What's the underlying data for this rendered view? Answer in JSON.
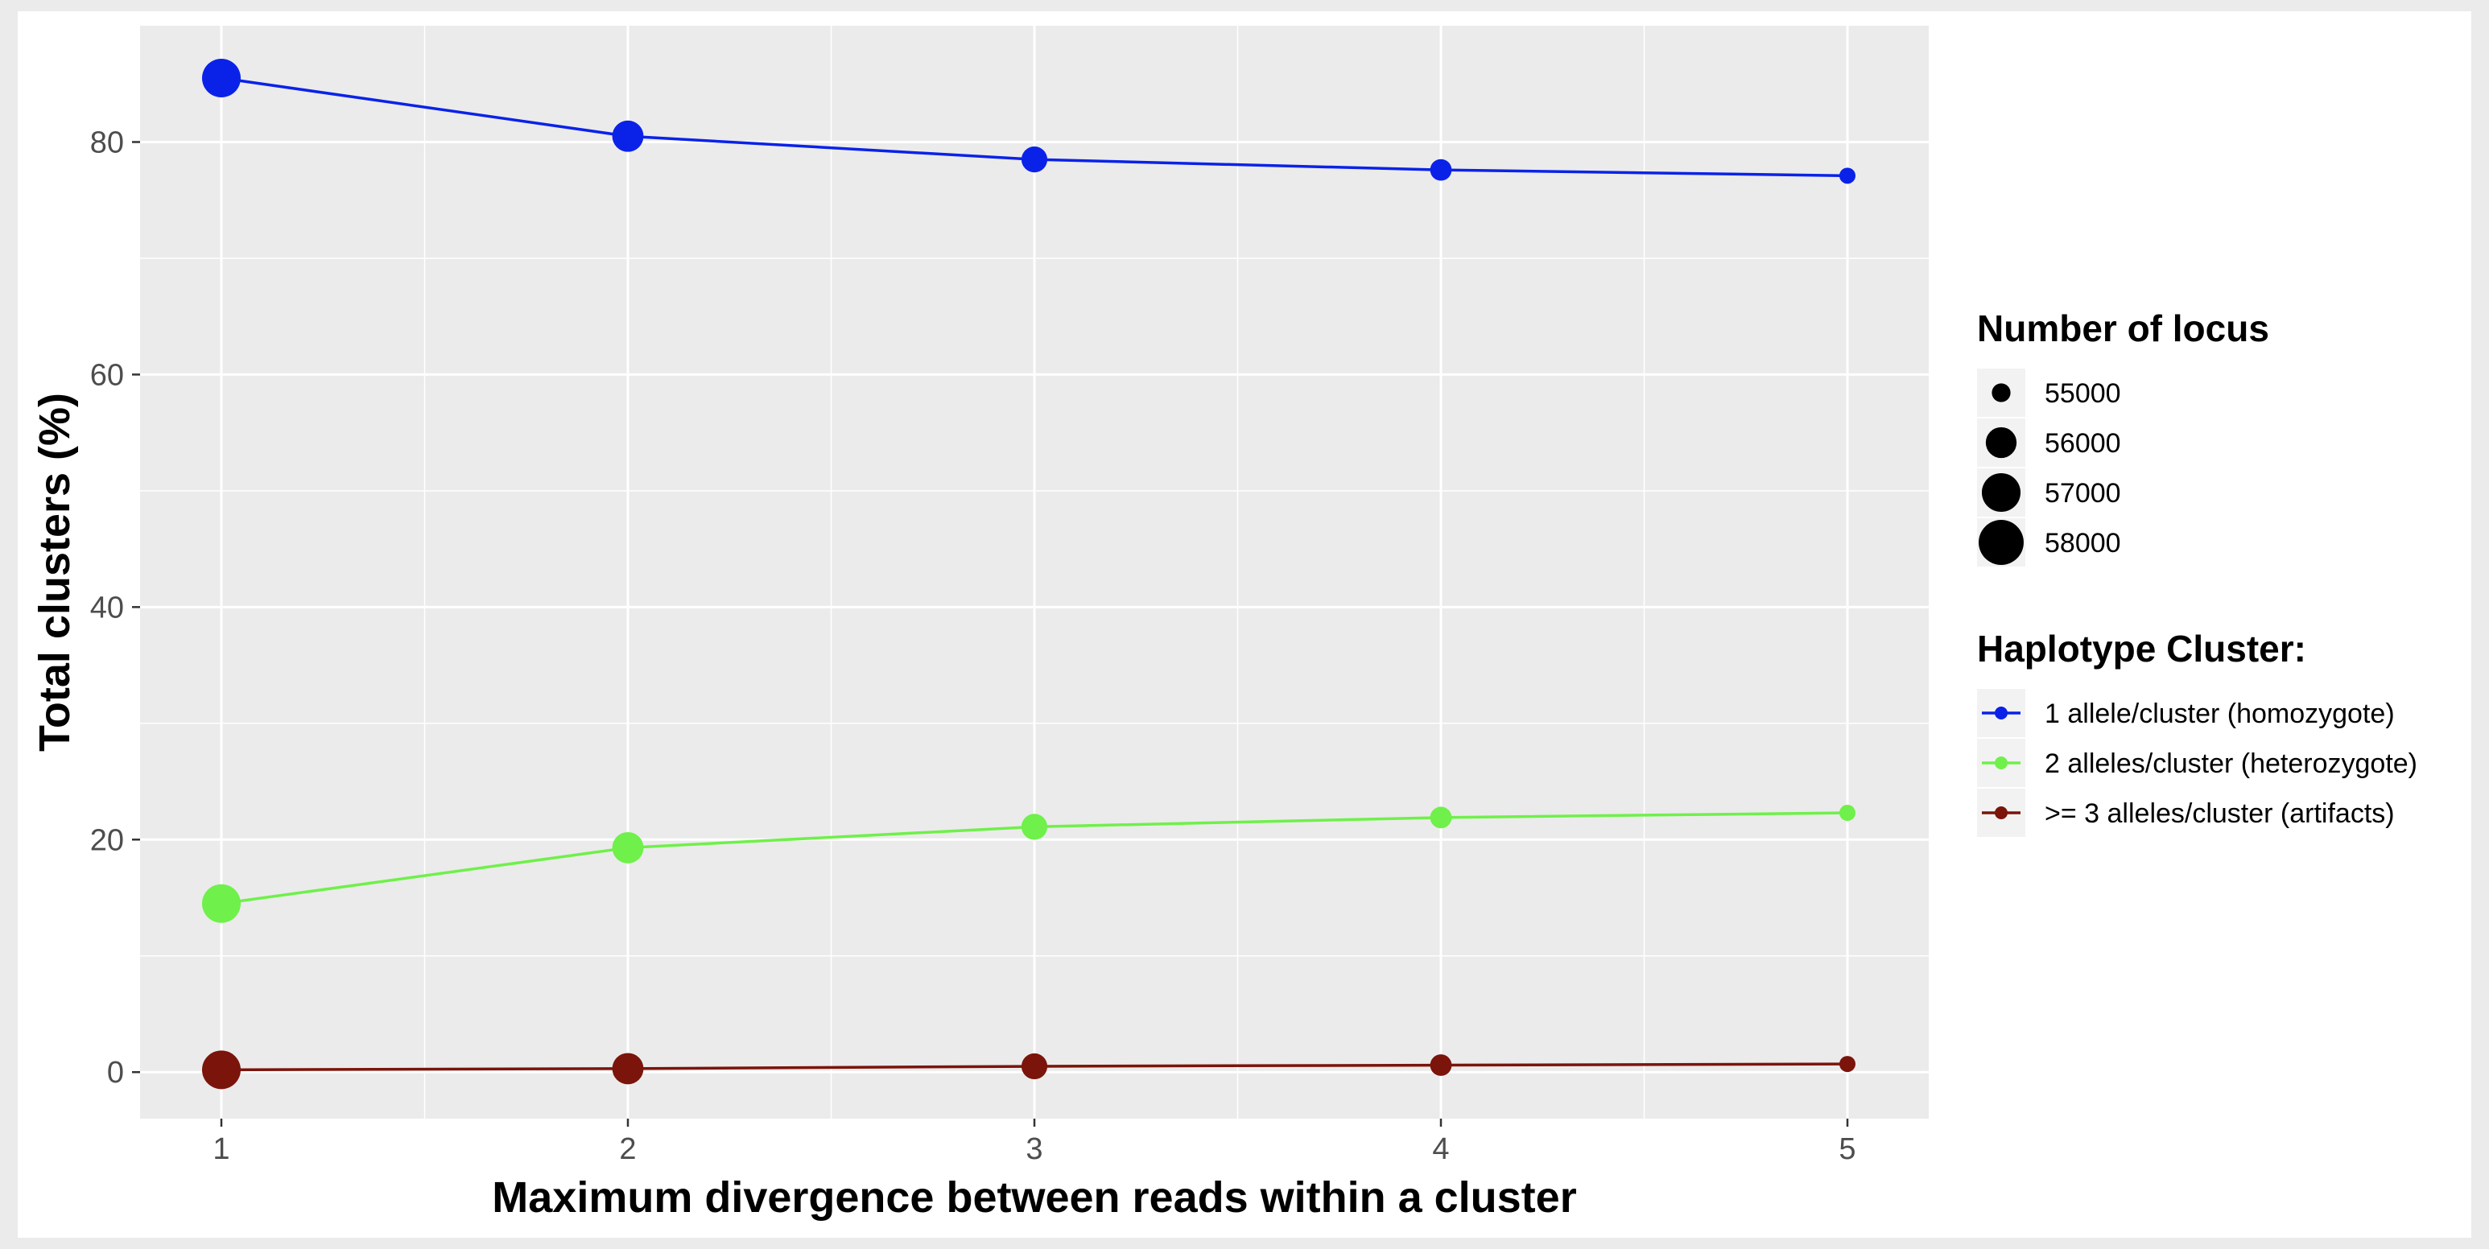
{
  "chart_data": {
    "type": "line",
    "title": "",
    "xlabel": "Maximum divergence between reads within a cluster",
    "ylabel": "Total clusters (%)",
    "x": [
      1,
      2,
      3,
      4,
      5
    ],
    "x_ticks": [
      "1",
      "2",
      "3",
      "4",
      "5"
    ],
    "xlim": [
      0.8,
      5.2
    ],
    "ylim": [
      -4,
      90
    ],
    "y_ticks": [
      0,
      20,
      40,
      60,
      80
    ],
    "y_tick_labels": [
      "0",
      "20",
      "40",
      "60",
      "80"
    ],
    "grid": true,
    "legend_position": "right",
    "panel_background": "#ebebeb",
    "series": [
      {
        "name": "1 allele/cluster (homozygote)",
        "color": "#0a22e8",
        "values": [
          85.5,
          80.5,
          78.5,
          77.6,
          77.1
        ]
      },
      {
        "name": "2 alleles/cluster (heterozygote)",
        "color": "#6ff04a",
        "values": [
          14.5,
          19.3,
          21.1,
          21.9,
          22.3
        ]
      },
      {
        "name": ">= 3 alleles/cluster (artifacts)",
        "color": "#7b140b",
        "values": [
          0.2,
          0.3,
          0.5,
          0.6,
          0.7
        ]
      }
    ],
    "point_size_by_x": {
      "variable": "Number of locus",
      "values": [
        58300,
        56800,
        55900,
        55300,
        54700
      ]
    },
    "size_legend": {
      "title": "Number of locus",
      "entries": [
        {
          "label": "55000",
          "value": 55000
        },
        {
          "label": "56000",
          "value": 56000
        },
        {
          "label": "57000",
          "value": 57000
        },
        {
          "label": "58000",
          "value": 58000
        }
      ]
    },
    "color_legend": {
      "title": "Haplotype Cluster:"
    }
  }
}
